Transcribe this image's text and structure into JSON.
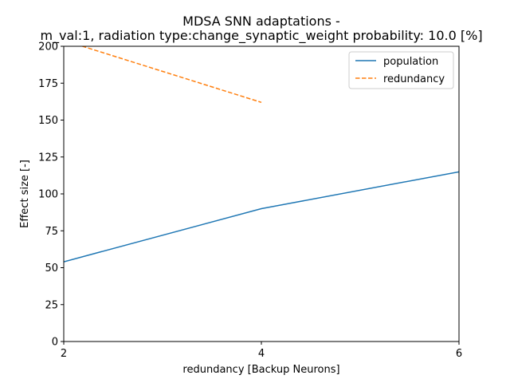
{
  "chart_data": {
    "type": "line",
    "title_line1": "MDSA SNN adaptations -",
    "title_line2": "m_val:1, radiation type:change_synaptic_weight probability: 10.0 [%]",
    "xlabel": "redundancy [Backup Neurons]",
    "ylabel": "Effect size [-]",
    "xlim": [
      2,
      6
    ],
    "ylim": [
      0,
      200
    ],
    "xticks": [
      2,
      4,
      6
    ],
    "yticks": [
      0,
      25,
      50,
      75,
      100,
      125,
      150,
      175,
      200
    ],
    "grid": false,
    "legend_position": "top-right",
    "series": [
      {
        "name": "population",
        "color": "#1f77b4",
        "style": "solid",
        "x": [
          2,
          4,
          6
        ],
        "y": [
          54,
          90,
          115
        ]
      },
      {
        "name": "redundancy",
        "color": "#ff7f0e",
        "style": "dashed",
        "x": [
          2,
          4
        ],
        "y": [
          204,
          162
        ]
      }
    ]
  }
}
